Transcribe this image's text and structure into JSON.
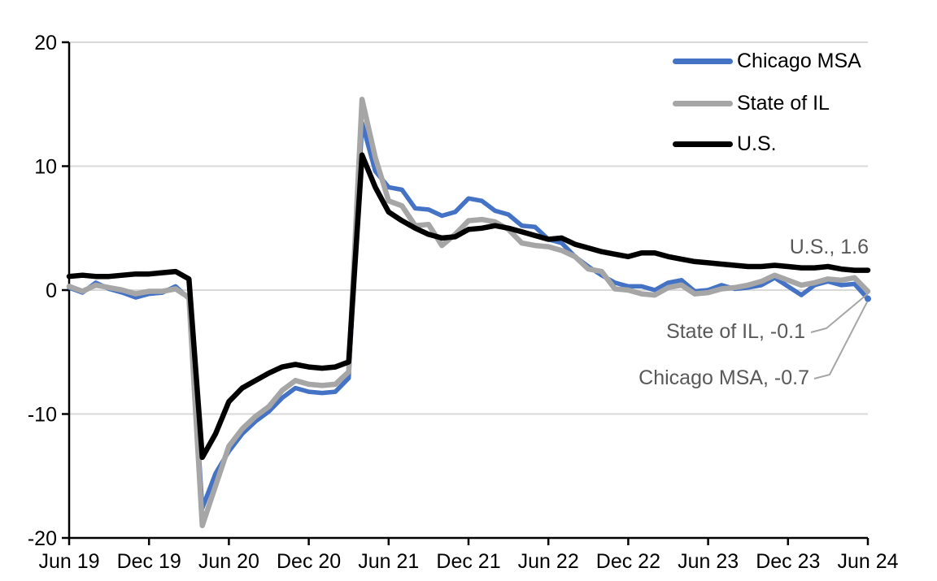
{
  "chart_data": {
    "type": "line",
    "title": "",
    "x_start": "Jun 2019",
    "x_end": "Jun 2024",
    "frequency": "monthly",
    "x_tick_labels": [
      "Jun 19",
      "Dec 19",
      "Jun 20",
      "Dec 20",
      "Jun 21",
      "Dec 21",
      "Jun 22",
      "Dec 22",
      "Jun 23",
      "Dec 23",
      "Jun 24"
    ],
    "y_ticks": [
      20,
      10,
      0,
      -10,
      -20
    ],
    "ylim": [
      -20,
      20
    ],
    "grid": "horizontal",
    "legend_position": "top-right",
    "colors": {
      "grid": "#D9D9D9",
      "axis": "#000000",
      "annotation_text": "#595959",
      "leader_line": "#A6A6A6"
    },
    "series": [
      {
        "name": "Chicago MSA",
        "color": "#4472C4",
        "final_value": -0.7,
        "values": [
          0.2,
          -0.2,
          0.6,
          0.1,
          -0.2,
          -0.6,
          -0.3,
          -0.2,
          0.3,
          -0.7,
          -17.6,
          -14.8,
          -13.0,
          -11.6,
          -10.6,
          -9.8,
          -8.7,
          -7.9,
          -8.2,
          -8.3,
          -8.2,
          -7.1,
          13.5,
          9.6,
          8.3,
          8.1,
          6.6,
          6.5,
          6.0,
          6.3,
          7.4,
          7.2,
          6.4,
          6.1,
          5.2,
          5.1,
          4.1,
          3.8,
          2.7,
          1.9,
          1.2,
          0.6,
          0.3,
          0.3,
          0.0,
          0.6,
          0.8,
          -0.1,
          0.0,
          0.4,
          0.1,
          0.2,
          0.4,
          1.0,
          0.3,
          -0.4,
          0.4,
          0.7,
          0.4,
          0.5,
          -0.7
        ]
      },
      {
        "name": "State of IL",
        "color": "#A6A6A6",
        "final_value": -0.1,
        "values": [
          0.3,
          -0.1,
          0.4,
          0.2,
          0.0,
          -0.3,
          -0.1,
          -0.1,
          0.1,
          -0.6,
          -19.0,
          -15.8,
          -12.6,
          -11.2,
          -10.2,
          -9.4,
          -8.1,
          -7.3,
          -7.6,
          -7.7,
          -7.6,
          -6.6,
          15.4,
          10.7,
          7.2,
          6.8,
          5.2,
          5.3,
          3.6,
          4.5,
          5.6,
          5.7,
          5.5,
          4.9,
          3.8,
          3.6,
          3.5,
          3.2,
          2.7,
          1.7,
          1.5,
          0.1,
          0.0,
          -0.3,
          -0.4,
          0.2,
          0.4,
          -0.3,
          -0.2,
          0.1,
          0.2,
          0.4,
          0.7,
          1.2,
          0.8,
          0.4,
          0.6,
          0.9,
          0.8,
          1.0,
          -0.1
        ]
      },
      {
        "name": "U.S.",
        "color": "#000000",
        "final_value": 1.6,
        "values": [
          1.1,
          1.2,
          1.1,
          1.1,
          1.2,
          1.3,
          1.3,
          1.4,
          1.5,
          0.9,
          -13.5,
          -11.6,
          -9.0,
          -7.9,
          -7.3,
          -6.7,
          -6.2,
          -6.0,
          -6.2,
          -6.3,
          -6.2,
          -5.8,
          10.9,
          8.3,
          6.3,
          5.6,
          5.0,
          4.5,
          4.2,
          4.3,
          4.9,
          5.0,
          5.2,
          5.0,
          4.7,
          4.4,
          4.1,
          4.2,
          3.7,
          3.4,
          3.1,
          2.9,
          2.7,
          3.0,
          3.0,
          2.7,
          2.5,
          2.3,
          2.2,
          2.1,
          2.0,
          1.9,
          1.9,
          2.0,
          1.9,
          1.8,
          1.8,
          1.9,
          1.7,
          1.6,
          1.6
        ]
      }
    ],
    "annotations": [
      {
        "text": "U.S., 1.6",
        "series": "U.S.",
        "value": 1.6
      },
      {
        "text": "State of IL, -0.1",
        "series": "State of IL",
        "value": -0.1
      },
      {
        "text": "Chicago MSA, -0.7",
        "series": "Chicago MSA",
        "value": -0.7
      }
    ]
  }
}
